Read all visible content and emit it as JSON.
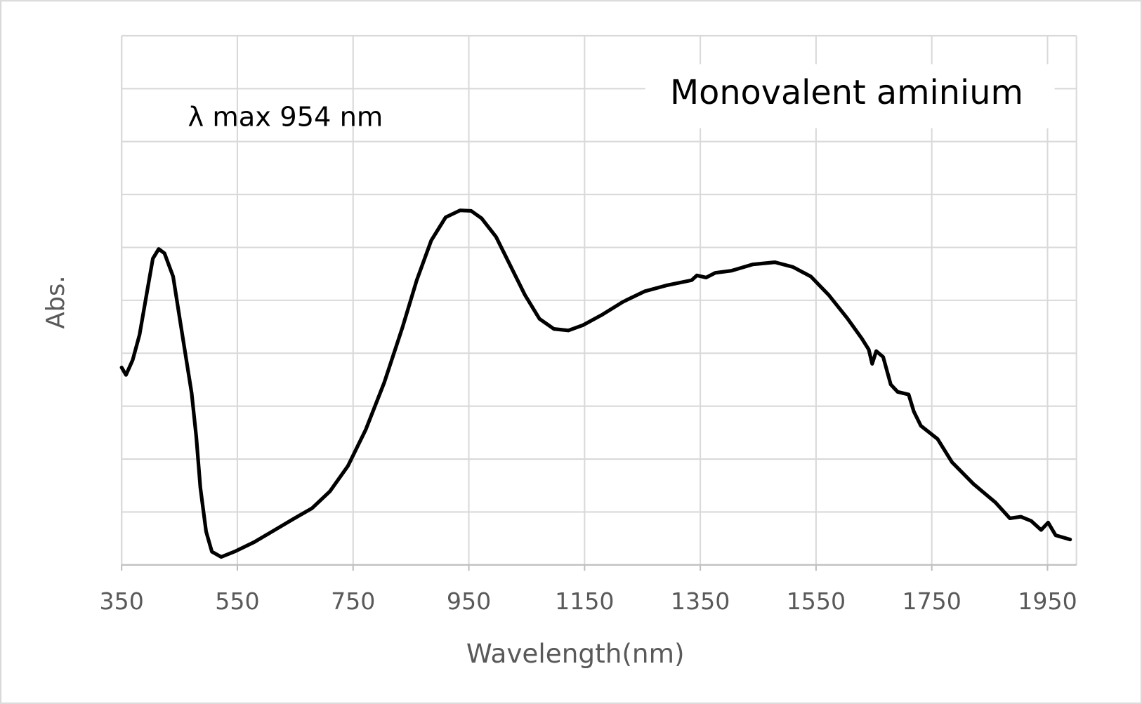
{
  "chart_data": {
    "type": "line",
    "x_label": "Wavelength(nm)",
    "y_label": "Abs.",
    "annotations": [
      "λ max 954 nm",
      "Monovalent aminium"
    ],
    "xlim": [
      350,
      2000
    ],
    "xticks": [
      350,
      550,
      750,
      950,
      1150,
      1350,
      1550,
      1750,
      1950
    ],
    "ylim": [
      0,
      10
    ],
    "yticks": [
      0,
      1,
      2,
      3,
      4,
      5,
      6,
      7,
      8,
      9,
      10
    ],
    "grid": true,
    "series": [
      {
        "color": "#000000",
        "x": [
          350,
          357.5,
          369,
          381,
          394,
          404,
          414,
          424,
          439,
          451,
          461,
          471,
          479,
          486,
          496,
          506,
          522,
          547,
          579,
          610,
          647,
          679,
          710,
          741,
          772,
          804,
          835,
          860,
          885,
          910,
          935,
          954,
          972,
          997,
          1022,
          1047,
          1072,
          1097,
          1122,
          1147,
          1179,
          1216,
          1254,
          1291,
          1335,
          1344,
          1360,
          1376,
          1404,
          1441,
          1479,
          1510,
          1541,
          1572,
          1604,
          1629,
          1641,
          1647,
          1654,
          1666,
          1679,
          1691,
          1710,
          1719,
          1731,
          1760,
          1785,
          1822,
          1860,
          1885,
          1904,
          1922,
          1939,
          1951,
          1964,
          1989
        ],
        "values": [
          3.73,
          3.59,
          3.87,
          4.35,
          5.17,
          5.79,
          5.97,
          5.89,
          5.45,
          4.62,
          3.93,
          3.25,
          2.42,
          1.46,
          0.63,
          0.25,
          0.15,
          0.26,
          0.43,
          0.63,
          0.87,
          1.07,
          1.39,
          1.87,
          2.56,
          3.45,
          4.48,
          5.38,
          6.13,
          6.57,
          6.7,
          6.69,
          6.55,
          6.2,
          5.65,
          5.1,
          4.65,
          4.46,
          4.43,
          4.53,
          4.72,
          4.97,
          5.17,
          5.28,
          5.38,
          5.47,
          5.43,
          5.52,
          5.56,
          5.68,
          5.72,
          5.63,
          5.45,
          5.1,
          4.66,
          4.28,
          4.07,
          3.8,
          4.04,
          3.93,
          3.41,
          3.27,
          3.22,
          2.9,
          2.63,
          2.38,
          1.94,
          1.53,
          1.18,
          0.88,
          0.91,
          0.83,
          0.66,
          0.8,
          0.56,
          0.48
        ]
      }
    ]
  }
}
